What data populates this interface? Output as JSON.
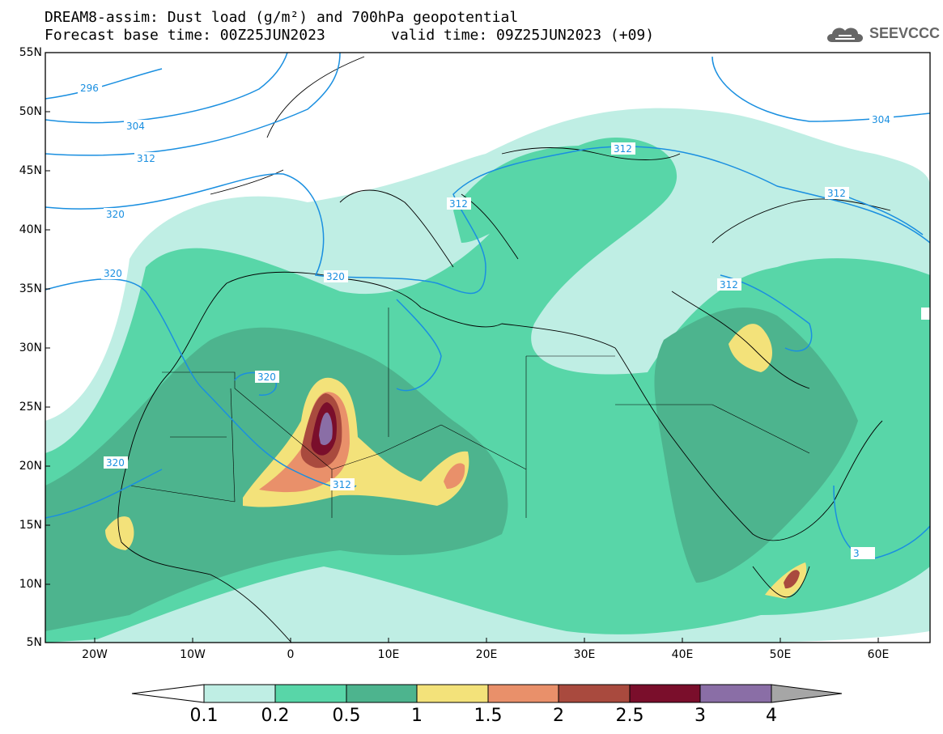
{
  "header": {
    "title_line1": "DREAM8-assim: Dust load (g/m²) and 700hPa geopotential",
    "title_line2_base": "Forecast base time: 00Z25JUN2023",
    "title_line2_valid": "valid time: 09Z25JUN2023 (+09)"
  },
  "logo": {
    "text": "SEEVCCC",
    "icon": "cloud-icon"
  },
  "map": {
    "lat_labels": [
      "55N",
      "50N",
      "45N",
      "40N",
      "35N",
      "30N",
      "25N",
      "20N",
      "15N",
      "10N",
      "5N"
    ],
    "lon_labels": [
      "20W",
      "10W",
      "0",
      "10E",
      "20E",
      "30E",
      "40E",
      "50E",
      "60E"
    ],
    "contour_labels": [
      "296",
      "304",
      "312",
      "320",
      "320",
      "320",
      "320",
      "320",
      "312",
      "312",
      "312",
      "304",
      "312",
      "312",
      "3"
    ]
  },
  "colorbar": {
    "labels": [
      "0.1",
      "0.2",
      "0.5",
      "1",
      "1.5",
      "2",
      "2.5",
      "3",
      "4"
    ],
    "colors": [
      "#ffffff",
      "#bfeee4",
      "#58d6a8",
      "#4db48e",
      "#f3e27a",
      "#e9906a",
      "#a94a3e",
      "#7a0e2b",
      "#8a6ea6",
      "#a6a6a6"
    ]
  }
}
